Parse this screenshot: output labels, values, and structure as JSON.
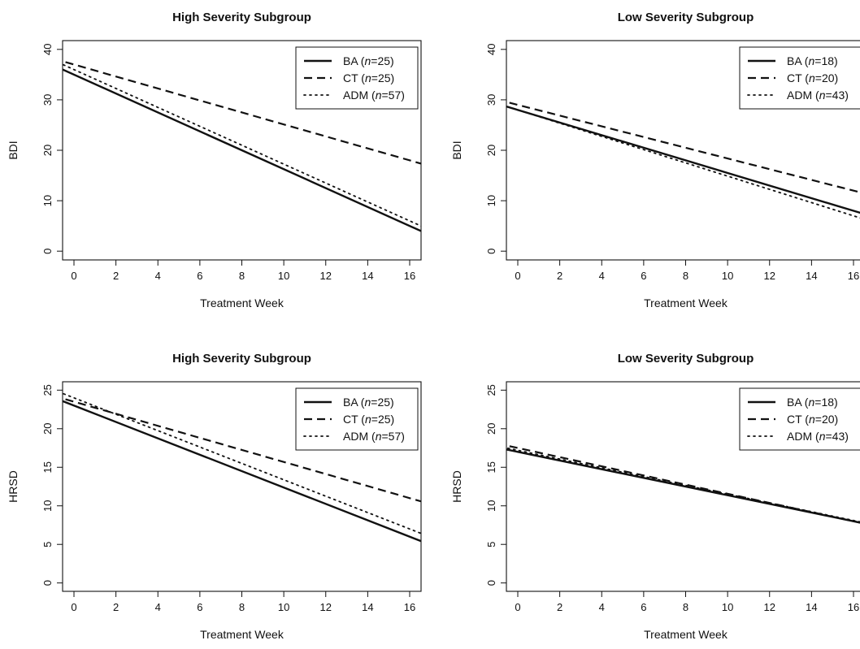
{
  "figure_colors": {
    "background": "#ffffff",
    "ink": "#111111"
  },
  "chart_data": [
    {
      "type": "line",
      "title": "High Severity Subgroup",
      "xlabel": "Treatment Week",
      "ylabel": "BDI",
      "xlim": [
        0,
        16
      ],
      "ylim": [
        0,
        40
      ],
      "x_ticks": [
        0,
        2,
        4,
        6,
        8,
        10,
        12,
        14,
        16
      ],
      "y_ticks": [
        0,
        10,
        20,
        30,
        40
      ],
      "grid": false,
      "legend_position": "top-right",
      "series": [
        {
          "name": "BA",
          "n": "25",
          "dash": "solid",
          "x": [
            0,
            16
          ],
          "values": [
            35,
            5
          ]
        },
        {
          "name": "CT",
          "n": "25",
          "dash": "dashed",
          "x": [
            0,
            16
          ],
          "values": [
            37,
            18
          ]
        },
        {
          "name": "ADM",
          "n": "57",
          "dash": "dotted",
          "x": [
            0,
            16
          ],
          "values": [
            36,
            6
          ]
        }
      ]
    },
    {
      "type": "line",
      "title": "Low Severity Subgroup",
      "xlabel": "Treatment Week",
      "ylabel": "BDI",
      "xlim": [
        0,
        16
      ],
      "ylim": [
        0,
        40
      ],
      "x_ticks": [
        0,
        2,
        4,
        6,
        8,
        10,
        12,
        14,
        16
      ],
      "y_ticks": [
        0,
        10,
        20,
        30,
        40
      ],
      "grid": false,
      "legend_position": "top-right",
      "series": [
        {
          "name": "BA",
          "n": "18",
          "dash": "solid",
          "x": [
            0,
            16
          ],
          "values": [
            28,
            8
          ]
        },
        {
          "name": "CT",
          "n": "20",
          "dash": "dashed",
          "x": [
            0,
            16
          ],
          "values": [
            29,
            12
          ]
        },
        {
          "name": "ADM",
          "n": "43",
          "dash": "dotted",
          "x": [
            0,
            16
          ],
          "values": [
            28,
            7
          ]
        }
      ]
    },
    {
      "type": "line",
      "title": "High Severity Subgroup",
      "xlabel": "Treatment Week",
      "ylabel": "HRSD",
      "xlim": [
        0,
        16
      ],
      "ylim": [
        0,
        25
      ],
      "x_ticks": [
        0,
        2,
        4,
        6,
        8,
        10,
        12,
        14,
        16
      ],
      "y_ticks": [
        0,
        5,
        10,
        15,
        20,
        25
      ],
      "grid": false,
      "legend_position": "top-right",
      "series": [
        {
          "name": "BA",
          "n": "25",
          "dash": "solid",
          "x": [
            0,
            16
          ],
          "values": [
            23,
            6
          ]
        },
        {
          "name": "CT",
          "n": "25",
          "dash": "dashed",
          "x": [
            0,
            16
          ],
          "values": [
            23.5,
            11
          ]
        },
        {
          "name": "ADM",
          "n": "57",
          "dash": "dotted",
          "x": [
            0,
            16
          ],
          "values": [
            24,
            7
          ]
        }
      ]
    },
    {
      "type": "line",
      "title": "Low Severity Subgroup",
      "xlabel": "Treatment Week",
      "ylabel": "HRSD",
      "xlim": [
        0,
        16
      ],
      "ylim": [
        0,
        25
      ],
      "x_ticks": [
        0,
        2,
        4,
        6,
        8,
        10,
        12,
        14,
        16
      ],
      "y_ticks": [
        0,
        5,
        10,
        15,
        20,
        25
      ],
      "grid": false,
      "legend_position": "top-right",
      "series": [
        {
          "name": "BA",
          "n": "18",
          "dash": "solid",
          "x": [
            0,
            16
          ],
          "values": [
            17,
            8
          ]
        },
        {
          "name": "CT",
          "n": "20",
          "dash": "dashed",
          "x": [
            0,
            16
          ],
          "values": [
            17.5,
            8
          ]
        },
        {
          "name": "ADM",
          "n": "43",
          "dash": "dotted",
          "x": [
            0,
            16
          ],
          "values": [
            17.2,
            8.1
          ]
        }
      ]
    }
  ]
}
